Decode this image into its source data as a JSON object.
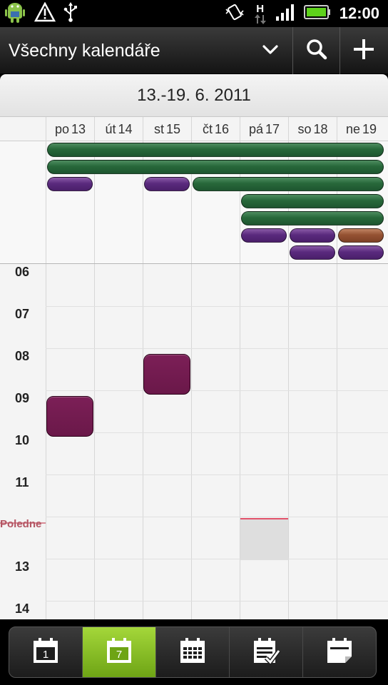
{
  "status_bar": {
    "time": "12:00",
    "network": "H",
    "icons": [
      "android-icon",
      "warning-icon",
      "usb-icon",
      "vibrate-icon",
      "network-h-icon",
      "signal-icon",
      "battery-icon"
    ]
  },
  "title_bar": {
    "calendar_name": "Všechny kalendáře",
    "icons": [
      "chevron-down-icon",
      "search-icon",
      "add-icon"
    ]
  },
  "week_header": {
    "date_range": "13.-19. 6. 2011"
  },
  "days": [
    {
      "abbr": "po",
      "num": "13"
    },
    {
      "abbr": "út",
      "num": "14"
    },
    {
      "abbr": "st",
      "num": "15"
    },
    {
      "abbr": "čt",
      "num": "16"
    },
    {
      "abbr": "pá",
      "num": "17"
    },
    {
      "abbr": "so",
      "num": "18"
    },
    {
      "abbr": "ne",
      "num": "19"
    }
  ],
  "hours": [
    "06",
    "07",
    "08",
    "09",
    "10",
    "11",
    "Poledne",
    "13",
    "14"
  ],
  "all_day_events": [
    {
      "color": "green",
      "start_day": 0,
      "end_day": 6
    },
    {
      "color": "green",
      "start_day": 0,
      "end_day": 6
    },
    {
      "color": "purple",
      "start_day": 0,
      "end_day": 0
    },
    {
      "color": "purple",
      "start_day": 2,
      "end_day": 2
    },
    {
      "color": "green",
      "start_day": 3,
      "end_day": 6
    },
    {
      "color": "green",
      "start_day": 4,
      "end_day": 6
    },
    {
      "color": "green",
      "start_day": 4,
      "end_day": 6
    },
    {
      "color": "purple",
      "start_day": 4,
      "end_day": 4
    },
    {
      "color": "purple",
      "start_day": 5,
      "end_day": 5
    },
    {
      "color": "brown",
      "start_day": 6,
      "end_day": 6
    },
    {
      "color": "purple",
      "start_day": 5,
      "end_day": 5
    },
    {
      "color": "purple",
      "start_day": 6,
      "end_day": 6
    }
  ],
  "timed_events": [
    {
      "day": 0,
      "start_hour": 9.0,
      "end_hour": 10.0,
      "color": "#6e1a4e"
    },
    {
      "day": 2,
      "start_hour": 8.0,
      "end_hour": 9.0,
      "color": "#6e1a4e"
    }
  ],
  "current_time": {
    "day": 4,
    "hour": 12.0
  },
  "colors": {
    "green": "#27683a",
    "purple": "#5a2a7e",
    "brown": "#955233",
    "event_timed": "#6e1a4e",
    "active_tab": "#8cc425",
    "now_line": "#e2526a"
  },
  "bottom_tabs": [
    {
      "icon": "day-view-icon",
      "glyph": "1",
      "active": false
    },
    {
      "icon": "week-view-icon",
      "glyph": "7",
      "active": true
    },
    {
      "icon": "month-view-icon",
      "glyph": "",
      "active": false
    },
    {
      "icon": "agenda-view-icon",
      "glyph": "",
      "active": false
    },
    {
      "icon": "invitations-icon",
      "glyph": "",
      "active": false
    }
  ]
}
